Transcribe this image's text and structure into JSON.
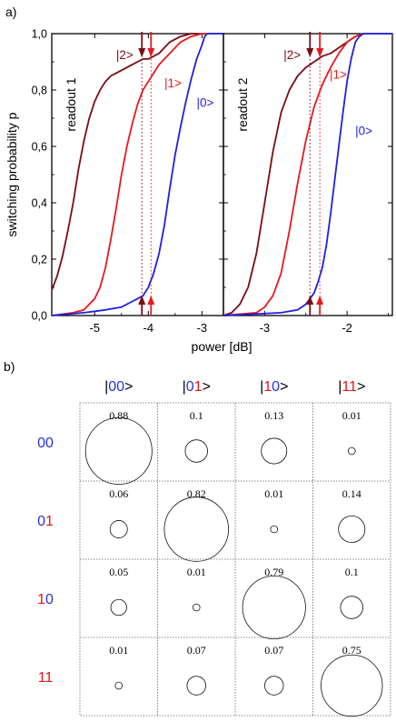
{
  "figure": {
    "panel_a_label": "a)",
    "panel_b_label": "b)"
  },
  "colors": {
    "state0": "#1f1fe0",
    "state1": "#e8181e",
    "state2": "#7a0c14",
    "basis_blue": "#2233dd",
    "basis_red": "#ee1111"
  },
  "chart_data": [
    {
      "type": "line",
      "panel": "a-left",
      "annotation": "readout 1",
      "ylabel": "switching probability p",
      "xlabel": "power [dB]",
      "xlim": [
        -5.8,
        -2.6
      ],
      "ylim": [
        0,
        1
      ],
      "xticks": [
        "-5",
        "-4",
        "-3"
      ],
      "xtick_values": [
        -5,
        -4,
        -3
      ],
      "yticks": [
        "0,0",
        "0,2",
        "0,4",
        "0,6",
        "0,8",
        "1,0"
      ],
      "ytick_values": [
        0,
        0.2,
        0.4,
        0.6,
        0.8,
        1.0
      ],
      "series": [
        {
          "name": "|2>",
          "color_key": "state2",
          "x": [
            -5.8,
            -5.7,
            -5.6,
            -5.5,
            -5.4,
            -5.3,
            -5.2,
            -5.1,
            -5.0,
            -4.9,
            -4.8,
            -4.7,
            -4.6,
            -4.5,
            -4.4,
            -4.3,
            -4.2,
            -4.1,
            -4.0,
            -3.9,
            -3.8,
            -3.7,
            -3.6,
            -3.5,
            -3.4,
            -3.3,
            -3.2,
            -3.1
          ],
          "y": [
            0.09,
            0.14,
            0.21,
            0.3,
            0.4,
            0.52,
            0.62,
            0.7,
            0.76,
            0.8,
            0.83,
            0.85,
            0.86,
            0.87,
            0.88,
            0.89,
            0.9,
            0.91,
            0.91,
            0.92,
            0.93,
            0.95,
            0.97,
            0.98,
            0.99,
            0.995,
            1.0,
            1.0
          ]
        },
        {
          "name": "|1>",
          "color_key": "state1",
          "x": [
            -5.8,
            -5.4,
            -5.2,
            -5.0,
            -4.9,
            -4.8,
            -4.7,
            -4.6,
            -4.5,
            -4.4,
            -4.3,
            -4.2,
            -4.1,
            -4.0,
            -3.9,
            -3.8,
            -3.7,
            -3.6,
            -3.5,
            -3.4,
            -3.3,
            -3.2,
            -3.1,
            -3.0,
            -2.9
          ],
          "y": [
            0.0,
            0.01,
            0.02,
            0.06,
            0.1,
            0.17,
            0.27,
            0.38,
            0.5,
            0.6,
            0.68,
            0.75,
            0.8,
            0.83,
            0.86,
            0.89,
            0.91,
            0.93,
            0.95,
            0.97,
            0.98,
            0.99,
            0.995,
            1.0,
            1.0
          ]
        },
        {
          "name": "|0>",
          "color_key": "state0",
          "x": [
            -5.8,
            -5.2,
            -4.8,
            -4.5,
            -4.3,
            -4.1,
            -4.0,
            -3.9,
            -3.8,
            -3.7,
            -3.6,
            -3.5,
            -3.4,
            -3.3,
            -3.2,
            -3.1,
            -3.0,
            -2.95,
            -2.9,
            -2.8,
            -2.6
          ],
          "y": [
            0.0,
            0.01,
            0.02,
            0.03,
            0.05,
            0.07,
            0.1,
            0.15,
            0.22,
            0.32,
            0.45,
            0.57,
            0.67,
            0.76,
            0.84,
            0.91,
            0.96,
            0.99,
            1.0,
            1.0,
            1.0
          ]
        }
      ],
      "vlines": [
        {
          "x": -4.12,
          "color_key": "state2",
          "style": "dotted"
        },
        {
          "x": -3.95,
          "color_key": "state1",
          "style": "dotted"
        }
      ],
      "markers": [
        {
          "x": -4.12,
          "color_key": "state2",
          "direction": "down"
        },
        {
          "x": -4.12,
          "color_key": "state2",
          "direction": "up"
        },
        {
          "x": -3.95,
          "color_key": "state1",
          "direction": "down"
        },
        {
          "x": -3.95,
          "color_key": "state1",
          "direction": "up"
        }
      ],
      "labels": [
        {
          "text": "|2>",
          "x": -4.6,
          "y": 0.91,
          "color_key": "state2"
        },
        {
          "text": "|1>",
          "x": -3.7,
          "y": 0.81,
          "color_key": "state1"
        },
        {
          "text": "|0>",
          "x": -3.1,
          "y": 0.74,
          "color_key": "state0"
        }
      ]
    },
    {
      "type": "line",
      "panel": "a-right",
      "annotation": "readout 2",
      "xlim": [
        -3.5,
        -1.45
      ],
      "ylim": [
        0,
        1
      ],
      "xticks": [
        "-3",
        "-2"
      ],
      "xtick_values": [
        -3,
        -2
      ],
      "series": [
        {
          "name": "|2>",
          "color_key": "state2",
          "x": [
            -3.5,
            -3.4,
            -3.3,
            -3.2,
            -3.1,
            -3.0,
            -2.9,
            -2.8,
            -2.7,
            -2.6,
            -2.5,
            -2.4,
            -2.3,
            -2.2,
            -2.1,
            -2.0,
            -1.9,
            -1.8
          ],
          "y": [
            0.0,
            0.01,
            0.04,
            0.1,
            0.22,
            0.4,
            0.58,
            0.72,
            0.8,
            0.85,
            0.88,
            0.9,
            0.92,
            0.93,
            0.95,
            0.97,
            0.99,
            1.0
          ]
        },
        {
          "name": "|1>",
          "color_key": "state1",
          "x": [
            -3.5,
            -3.1,
            -3.0,
            -2.9,
            -2.8,
            -2.7,
            -2.6,
            -2.5,
            -2.4,
            -2.3,
            -2.2,
            -2.1,
            -2.0,
            -1.9,
            -1.8
          ],
          "y": [
            0.0,
            0.01,
            0.03,
            0.07,
            0.15,
            0.3,
            0.47,
            0.62,
            0.74,
            0.82,
            0.88,
            0.93,
            0.97,
            0.99,
            1.0
          ]
        },
        {
          "name": "|0>",
          "color_key": "state0",
          "x": [
            -3.5,
            -2.8,
            -2.6,
            -2.5,
            -2.45,
            -2.4,
            -2.35,
            -2.3,
            -2.25,
            -2.2,
            -2.15,
            -2.1,
            -2.05,
            -2.0,
            -1.95,
            -1.9,
            -1.85,
            -1.8,
            -1.45
          ],
          "y": [
            0.0,
            0.01,
            0.02,
            0.04,
            0.06,
            0.08,
            0.12,
            0.17,
            0.25,
            0.36,
            0.48,
            0.6,
            0.72,
            0.83,
            0.91,
            0.97,
            0.99,
            1.0,
            1.0
          ]
        }
      ],
      "vlines": [
        {
          "x": -2.45,
          "color_key": "state2",
          "style": "dotted"
        },
        {
          "x": -2.33,
          "color_key": "state1",
          "style": "dotted"
        }
      ],
      "markers": [
        {
          "x": -2.45,
          "color_key": "state2",
          "direction": "down"
        },
        {
          "x": -2.45,
          "color_key": "state2",
          "direction": "up"
        },
        {
          "x": -2.33,
          "color_key": "state1",
          "direction": "down"
        },
        {
          "x": -2.33,
          "color_key": "state1",
          "direction": "up"
        }
      ],
      "labels": [
        {
          "text": "|2>",
          "x": -2.77,
          "y": 0.91,
          "color_key": "state2"
        },
        {
          "text": "|1>",
          "x": -2.21,
          "y": 0.84,
          "color_key": "state1"
        },
        {
          "text": "|0>",
          "x": -1.9,
          "y": 0.64,
          "color_key": "state0"
        }
      ]
    },
    {
      "type": "heatmap",
      "panel": "b",
      "encoding": "circle area proportional to probability",
      "columns": [
        {
          "parts": [
            {
              "t": "|",
              "c": "default"
            },
            {
              "t": "0",
              "c": "basis_blue"
            },
            {
              "t": "0",
              "c": "basis_blue"
            },
            {
              "t": ">",
              "c": "default"
            }
          ]
        },
        {
          "parts": [
            {
              "t": "|",
              "c": "default"
            },
            {
              "t": "0",
              "c": "basis_blue"
            },
            {
              "t": "1",
              "c": "basis_red"
            },
            {
              "t": ">",
              "c": "default"
            }
          ]
        },
        {
          "parts": [
            {
              "t": "|",
              "c": "default"
            },
            {
              "t": "1",
              "c": "basis_red"
            },
            {
              "t": "0",
              "c": "basis_blue"
            },
            {
              "t": ">",
              "c": "default"
            }
          ]
        },
        {
          "parts": [
            {
              "t": "|",
              "c": "default"
            },
            {
              "t": "1",
              "c": "basis_red"
            },
            {
              "t": "1",
              "c": "basis_red"
            },
            {
              "t": ">",
              "c": "default"
            }
          ]
        }
      ],
      "rows": [
        {
          "parts": [
            {
              "t": "0",
              "c": "basis_blue"
            },
            {
              "t": "0",
              "c": "basis_blue"
            }
          ]
        },
        {
          "parts": [
            {
              "t": "0",
              "c": "basis_blue"
            },
            {
              "t": "1",
              "c": "basis_red"
            }
          ]
        },
        {
          "parts": [
            {
              "t": "1",
              "c": "basis_red"
            },
            {
              "t": "0",
              "c": "basis_blue"
            }
          ]
        },
        {
          "parts": [
            {
              "t": "1",
              "c": "basis_red"
            },
            {
              "t": "1",
              "c": "basis_red"
            }
          ]
        }
      ],
      "values": [
        [
          "0.88",
          "0.1",
          "0.13",
          "0.01"
        ],
        [
          "0.06",
          "0.82",
          "0.01",
          "0.14"
        ],
        [
          "0.05",
          "0.01",
          "0.79",
          "0.1"
        ],
        [
          "0.01",
          "0.07",
          "0.07",
          "0.75"
        ]
      ]
    }
  ]
}
